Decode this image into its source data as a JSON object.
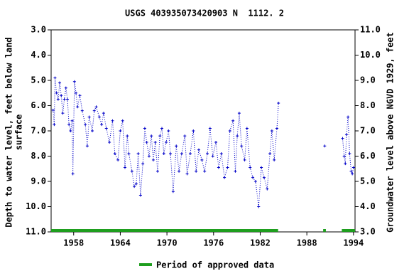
{
  "chart_data": {
    "type": "line",
    "title": "USGS 403935073420903 N  1112. 2",
    "ylabel": [
      "Depth to water level, feet below land",
      "surface"
    ],
    "y2label": "Groundwater level above NGVD 1929, feet",
    "xlim": [
      1955.1,
      1994.2
    ],
    "xticks": [
      1958,
      1964,
      1970,
      1976,
      1982,
      1988,
      1994
    ],
    "ylim": [
      11.0,
      3.0
    ],
    "yticks": [
      {
        "value": 3,
        "label": "3.0"
      },
      {
        "value": 4,
        "label": "4.0"
      },
      {
        "value": 5,
        "label": "5.0"
      },
      {
        "value": 6,
        "label": "6.0"
      },
      {
        "value": 7,
        "label": "7.0"
      },
      {
        "value": 8,
        "label": "8.0"
      },
      {
        "value": 9,
        "label": "9.0"
      },
      {
        "value": 10,
        "label": "10.0"
      },
      {
        "value": 11,
        "label": "11.0"
      }
    ],
    "y2lim": [
      3.0,
      11.0
    ],
    "y2ticks": [
      {
        "value": 3,
        "label": "3.0"
      },
      {
        "value": 4,
        "label": "4.0"
      },
      {
        "value": 5,
        "label": "5.0"
      },
      {
        "value": 6,
        "label": "6.0"
      },
      {
        "value": 7,
        "label": "7.0"
      },
      {
        "value": 8,
        "label": "8.0"
      },
      {
        "value": 9,
        "label": "9.0"
      },
      {
        "value": 10,
        "label": "10.0"
      },
      {
        "value": 11,
        "label": "11.0"
      }
    ],
    "series": [
      {
        "color": "#0000c8",
        "x": [
          1955.35,
          1955.5,
          1955.6,
          1955.8,
          1956.0,
          1956.2,
          1956.4,
          1956.6,
          1956.8,
          1957.0,
          1957.2,
          1957.4,
          1957.6,
          1957.8,
          1957.9,
          1958.1,
          1958.3,
          1958.5,
          1958.8,
          1959.1,
          1959.5,
          1959.75,
          1960.0,
          1960.4,
          1960.65,
          1960.9,
          1961.3,
          1961.6,
          1961.85,
          1962.2,
          1962.6,
          1963.0,
          1963.3,
          1963.7,
          1964.0,
          1964.3,
          1964.6,
          1964.9,
          1965.1,
          1965.5,
          1965.8,
          1966.05,
          1966.3,
          1966.6,
          1966.9,
          1967.15,
          1967.4,
          1967.7,
          1968.0,
          1968.25,
          1968.5,
          1968.8,
          1969.1,
          1969.35,
          1969.6,
          1969.9,
          1970.2,
          1970.45,
          1970.8,
          1971.2,
          1971.55,
          1971.9,
          1972.3,
          1972.6,
          1973.0,
          1973.4,
          1973.75,
          1974.1,
          1974.5,
          1974.85,
          1975.2,
          1975.55,
          1975.9,
          1976.3,
          1976.65,
          1977.0,
          1977.4,
          1977.8,
          1978.1,
          1978.5,
          1978.8,
          1979.05,
          1979.3,
          1979.6,
          1980.0,
          1980.3,
          1980.7,
          1981.05,
          1981.4,
          1981.8,
          1982.15,
          1982.5,
          1982.9,
          1983.25,
          1983.5,
          1983.8,
          1984.15,
          1984.35,
          null,
          1990.3,
          null,
          1992.6,
          1992.8,
          1992.95,
          1993.1,
          1993.3,
          1993.5,
          1993.7,
          1993.85,
          1994.0
        ],
        "values": [
          6.18,
          6.75,
          4.9,
          5.5,
          5.75,
          5.1,
          5.6,
          6.3,
          5.75,
          5.3,
          5.75,
          6.75,
          7.0,
          6.6,
          8.7,
          5.05,
          5.5,
          6.05,
          5.6,
          6.2,
          6.75,
          7.6,
          6.45,
          7.0,
          6.2,
          6.05,
          6.45,
          6.75,
          6.3,
          6.9,
          7.45,
          6.6,
          7.9,
          8.15,
          7.0,
          6.6,
          8.45,
          7.2,
          7.9,
          8.6,
          9.2,
          9.1,
          7.9,
          9.55,
          8.3,
          6.9,
          7.45,
          8.0,
          7.2,
          8.15,
          7.45,
          8.6,
          7.2,
          6.9,
          7.9,
          7.45,
          7.0,
          7.9,
          9.4,
          7.6,
          8.6,
          7.9,
          7.2,
          8.7,
          7.9,
          7.0,
          8.6,
          7.75,
          8.15,
          8.6,
          7.9,
          6.9,
          8.0,
          7.45,
          8.45,
          7.9,
          8.85,
          8.45,
          7.0,
          6.6,
          8.6,
          7.2,
          6.3,
          7.6,
          8.15,
          6.9,
          8.45,
          8.85,
          9.0,
          10.0,
          8.45,
          8.85,
          9.3,
          7.9,
          7.0,
          8.15,
          6.9,
          5.9,
          null,
          7.6,
          null,
          7.3,
          8.0,
          8.3,
          7.15,
          6.45,
          7.9,
          8.6,
          8.7,
          8.45
        ]
      }
    ],
    "approved_periods": [
      {
        "start": 1955.1,
        "end": 1984.3
      },
      {
        "start": 1990.1,
        "end": 1990.45
      },
      {
        "start": 1992.5,
        "end": 1994.2
      }
    ],
    "approved_color": "#1e9e1e",
    "legend": "Period of approved data"
  }
}
